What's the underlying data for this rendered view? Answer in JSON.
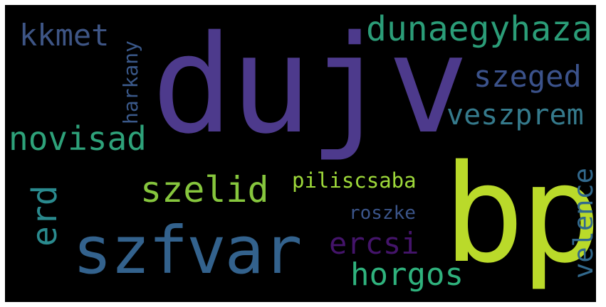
{
  "words": [
    {
      "text": "dujv",
      "color": "#4d3a8c"
    },
    {
      "text": "bp",
      "color": "#bada2a"
    },
    {
      "text": "szfvar",
      "color": "#33628d"
    },
    {
      "text": "dunaegyhaza",
      "color": "#2b9d78"
    },
    {
      "text": "kkmet",
      "color": "#3e5585"
    },
    {
      "text": "szeged",
      "color": "#3b528b"
    },
    {
      "text": "veszprem",
      "color": "#357a8c"
    },
    {
      "text": "novisad",
      "color": "#2ea27a"
    },
    {
      "text": "szelid",
      "color": "#86c63d"
    },
    {
      "text": "piliscsaba",
      "color": "#9ed93a"
    },
    {
      "text": "roszke",
      "color": "#3b558a"
    },
    {
      "text": "ercsi",
      "color": "#44146a"
    },
    {
      "text": "horgos",
      "color": "#2fb27d"
    },
    {
      "text": "harkany",
      "color": "#3a5889"
    },
    {
      "text": "erd",
      "color": "#2a8a8e"
    },
    {
      "text": "velence",
      "color": "#32698d"
    }
  ]
}
